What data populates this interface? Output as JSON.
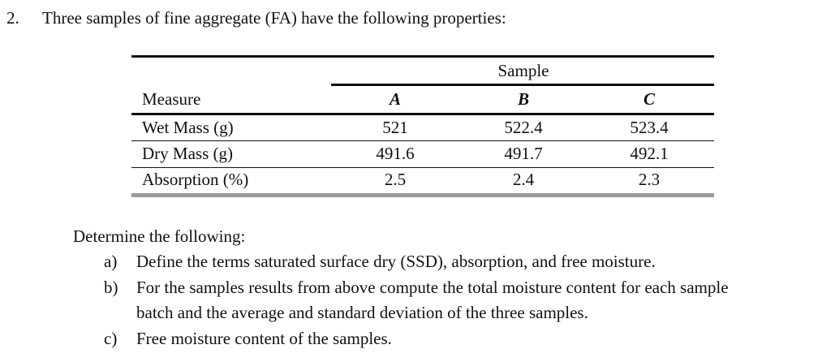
{
  "question": {
    "number": "2.",
    "text": "Three samples of fine aggregate (FA) have the following properties:"
  },
  "table": {
    "group_header": "Sample",
    "header": [
      "Measure",
      "A",
      "B",
      "C"
    ],
    "rows": [
      [
        "Wet Mass (g)",
        "521",
        "522.4",
        "523.4"
      ],
      [
        "Dry Mass (g)",
        "491.6",
        "491.7",
        "492.1"
      ],
      [
        "Absorption (%)",
        "2.5",
        "2.4",
        "2.3"
      ]
    ]
  },
  "instructions": {
    "intro": "Determine the following:",
    "items": [
      {
        "label": "a)",
        "lines": [
          "Define the terms saturated surface dry (SSD), absorption, and free moisture."
        ]
      },
      {
        "label": "b)",
        "lines": [
          "For the samples results from above compute the total moisture content for each sample",
          "batch and the average and standard deviation of the three samples."
        ]
      },
      {
        "label": "c)",
        "lines": [
          "Free moisture content of the samples."
        ]
      }
    ]
  }
}
